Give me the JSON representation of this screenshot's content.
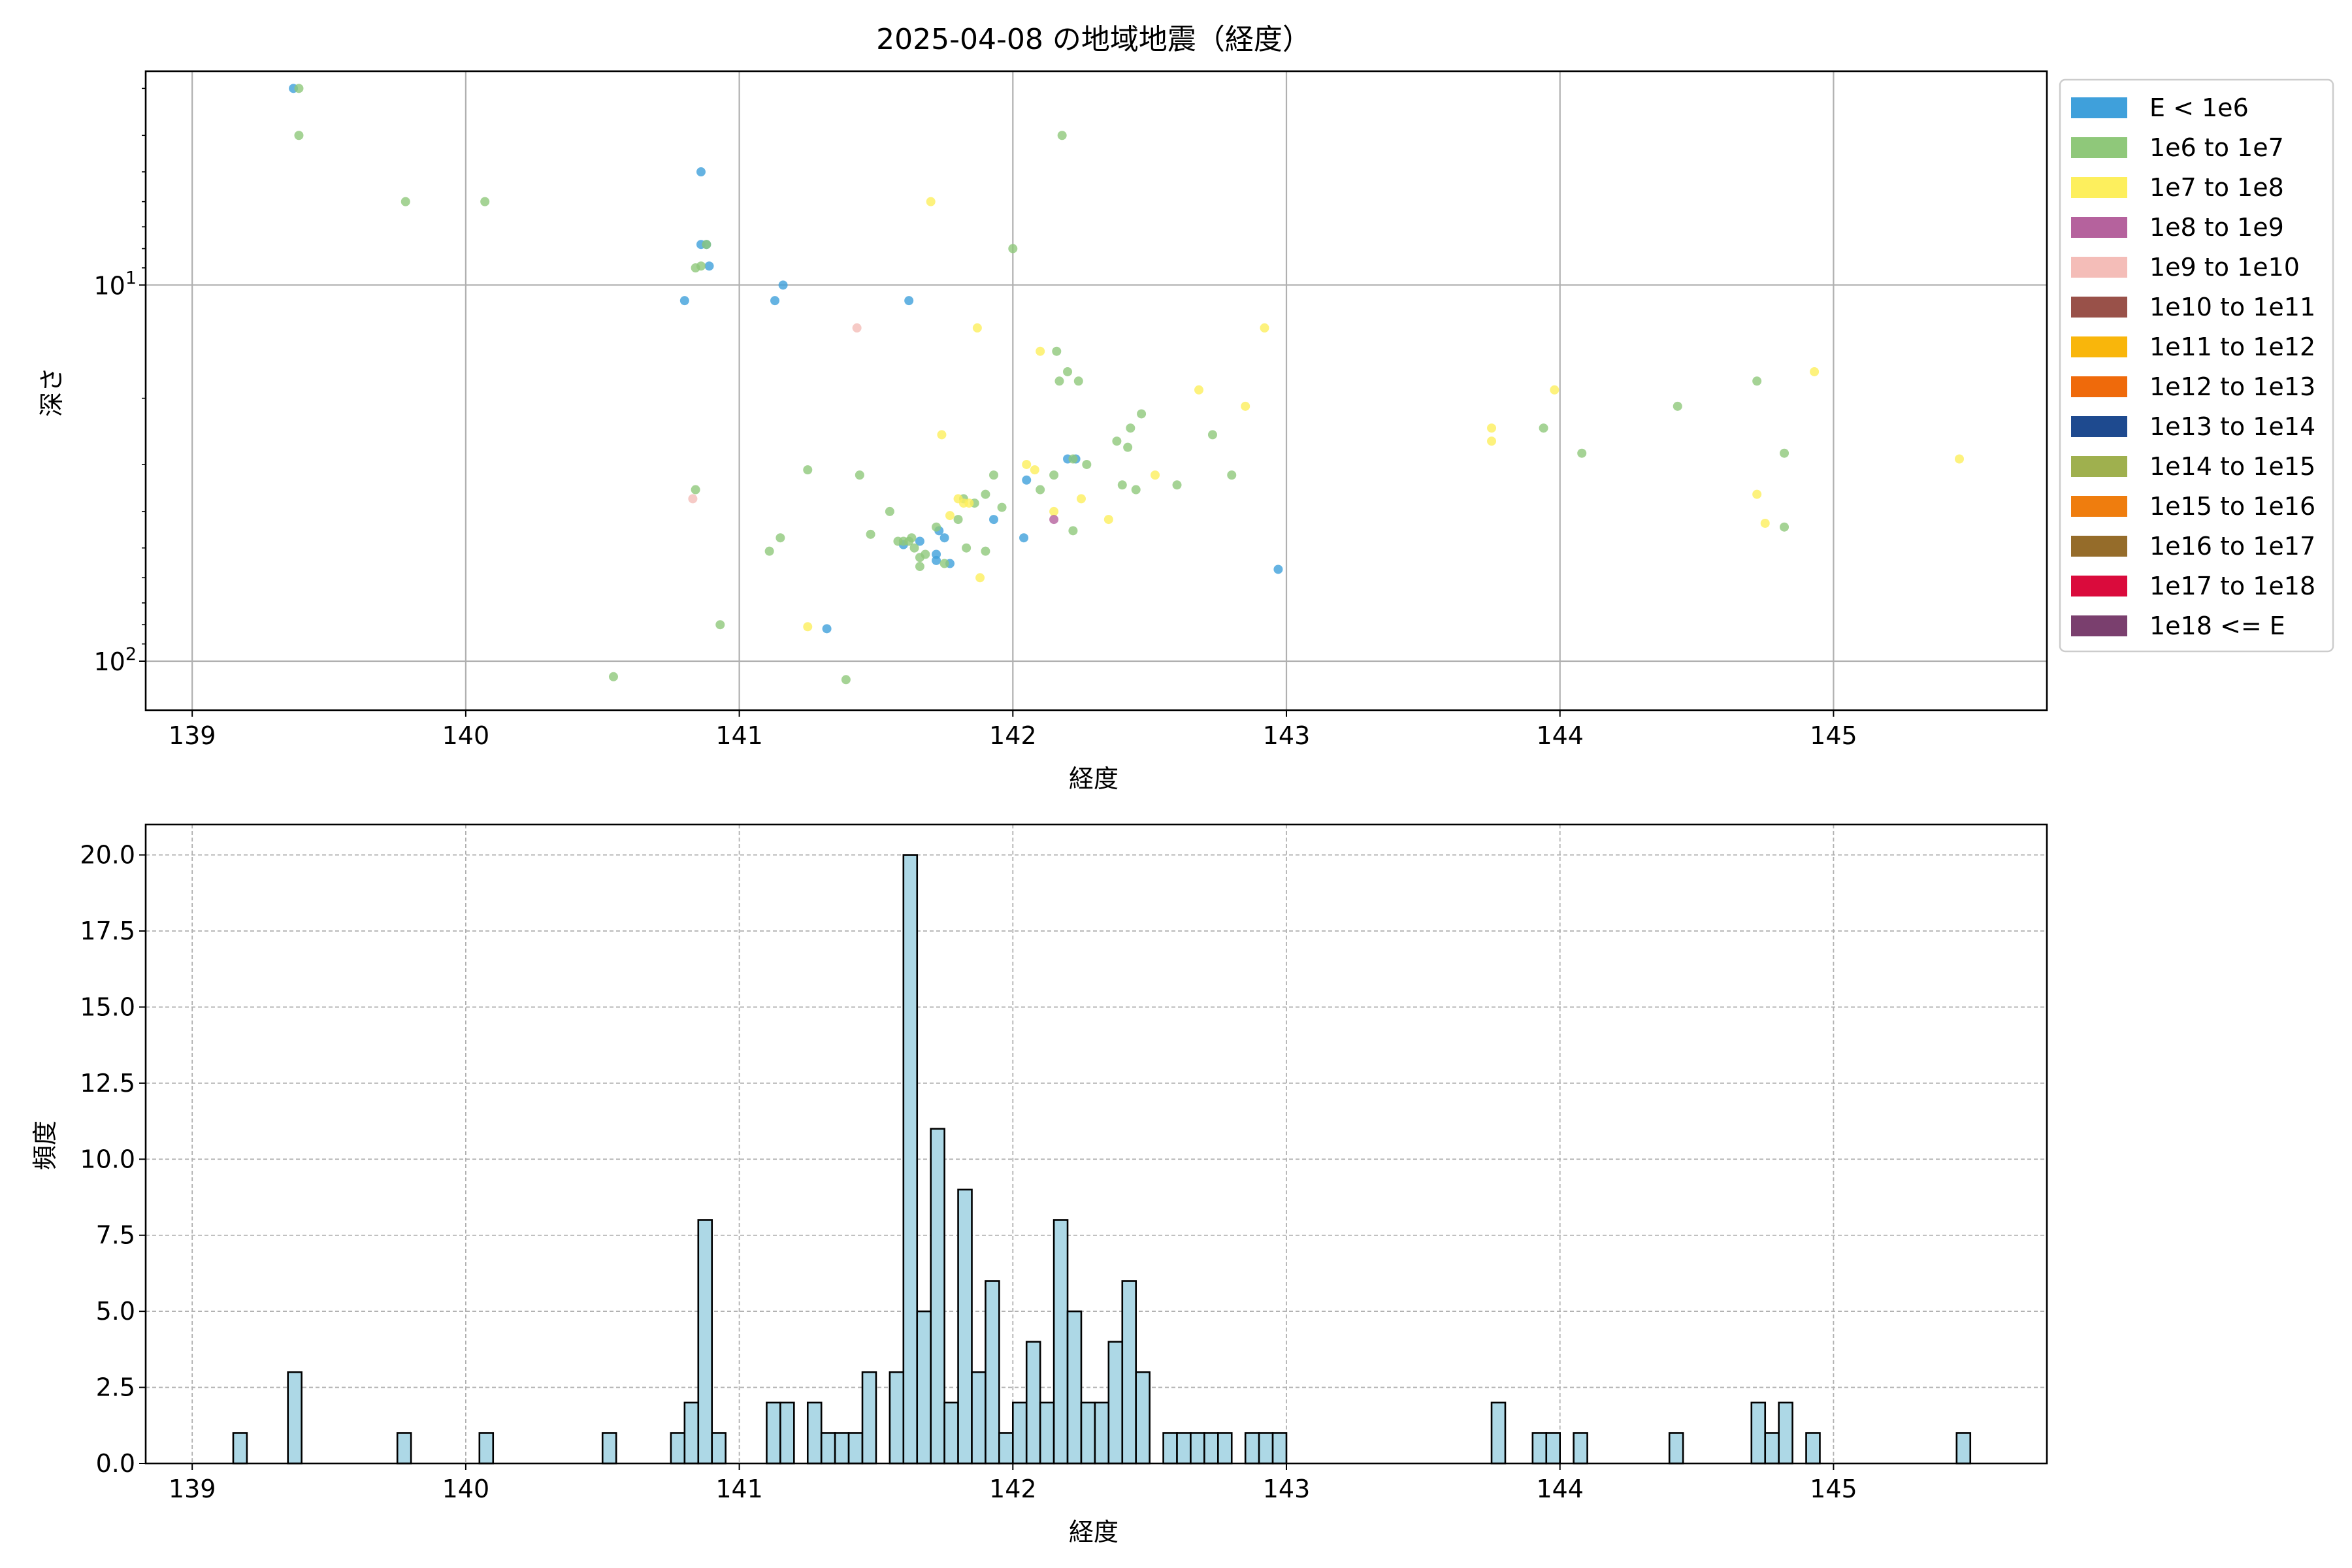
{
  "chart_data": [
    {
      "type": "scatter",
      "title": "2025-04-08 の地域地震（経度）",
      "xlabel": "経度",
      "ylabel": "深さ",
      "xlim": [
        138.83,
        145.78
      ],
      "ylim": [
        135,
        2.7
      ],
      "yscale": "log",
      "y_inverted": true,
      "grid": true,
      "xticks": [
        "139",
        "140",
        "141",
        "142",
        "143",
        "144",
        "145"
      ],
      "yticks": [
        {
          "value": 10,
          "base": "10",
          "exp": "1"
        },
        {
          "value": 100,
          "base": "10",
          "exp": "2"
        }
      ],
      "legend_position": "outside-right",
      "legend": [
        {
          "label": "E < 1e6",
          "color": "#3fa0db"
        },
        {
          "label": "1e6 to 1e7",
          "color": "#8fc87a"
        },
        {
          "label": "1e7 to 1e8",
          "color": "#fdef5d"
        },
        {
          "label": "1e8 to 1e9",
          "color": "#b5629d"
        },
        {
          "label": "1e9 to 1e10",
          "color": "#f4bdb8"
        },
        {
          "label": "1e10 to 1e11",
          "color": "#995149"
        },
        {
          "label": "1e11 to 1e12",
          "color": "#f9b60b"
        },
        {
          "label": "1e12 to 1e13",
          "color": "#ef6a0b"
        },
        {
          "label": "1e13 to 1e14",
          "color": "#1e4a8f"
        },
        {
          "label": "1e14 to 1e15",
          "color": "#9fb04e"
        },
        {
          "label": "1e15 to 1e16",
          "color": "#ef7d0e"
        },
        {
          "label": "1e16 to 1e17",
          "color": "#956c2a"
        },
        {
          "label": "1e17 to 1e18",
          "color": "#da0b3c"
        },
        {
          "label": "1e18 <= E",
          "color": "#7a3f6e"
        }
      ],
      "series": [
        {
          "legend_index": 0,
          "points": [
            [
              139.37,
              3.0
            ],
            [
              140.8,
              11.0
            ],
            [
              140.86,
              5.0
            ],
            [
              140.86,
              7.8
            ],
            [
              140.88,
              7.8
            ],
            [
              140.89,
              8.9
            ],
            [
              141.13,
              11.0
            ],
            [
              141.16,
              10.0
            ],
            [
              141.32,
              82
            ],
            [
              141.62,
              11.0
            ],
            [
              141.6,
              49
            ],
            [
              141.66,
              48
            ],
            [
              141.72,
              52
            ],
            [
              141.72,
              54
            ],
            [
              141.73,
              45
            ],
            [
              141.75,
              47
            ],
            [
              141.77,
              55
            ],
            [
              141.93,
              42
            ],
            [
              142.04,
              47
            ],
            [
              142.05,
              33
            ],
            [
              142.2,
              29
            ],
            [
              142.23,
              29
            ],
            [
              142.97,
              57
            ]
          ]
        },
        {
          "legend_index": 1,
          "points": [
            [
              139.39,
              3.0
            ],
            [
              139.39,
              4.0
            ],
            [
              139.78,
              6.0
            ],
            [
              140.07,
              6.0
            ],
            [
              140.84,
              9.0
            ],
            [
              140.86,
              8.9
            ],
            [
              140.88,
              7.8
            ],
            [
              140.84,
              35
            ],
            [
              140.54,
              110
            ],
            [
              140.93,
              80
            ],
            [
              141.11,
              51
            ],
            [
              141.15,
              47
            ],
            [
              141.25,
              31
            ],
            [
              141.44,
              32
            ],
            [
              141.48,
              46
            ],
            [
              141.55,
              40
            ],
            [
              141.58,
              48
            ],
            [
              141.6,
              48
            ],
            [
              141.62,
              48
            ],
            [
              141.63,
              47
            ],
            [
              141.64,
              50
            ],
            [
              141.66,
              53
            ],
            [
              141.66,
              56
            ],
            [
              141.68,
              52
            ],
            [
              141.72,
              44
            ],
            [
              141.75,
              55
            ],
            [
              141.8,
              42
            ],
            [
              141.82,
              37
            ],
            [
              141.83,
              50
            ],
            [
              141.86,
              38
            ],
            [
              141.9,
              36
            ],
            [
              141.9,
              51
            ],
            [
              141.93,
              32
            ],
            [
              141.96,
              39
            ],
            [
              142.0,
              8.0
            ],
            [
              142.1,
              35
            ],
            [
              142.15,
              32
            ],
            [
              142.16,
              15
            ],
            [
              142.18,
              4.0
            ],
            [
              142.17,
              18
            ],
            [
              142.2,
              17
            ],
            [
              142.22,
              29
            ],
            [
              142.22,
              45
            ],
            [
              142.24,
              18
            ],
            [
              142.27,
              30
            ],
            [
              142.38,
              26
            ],
            [
              142.4,
              34
            ],
            [
              142.42,
              27
            ],
            [
              142.43,
              24
            ],
            [
              142.45,
              35
            ],
            [
              142.47,
              22
            ],
            [
              142.6,
              34
            ],
            [
              142.73,
              25
            ],
            [
              142.8,
              32
            ],
            [
              141.39,
              112
            ],
            [
              143.94,
              24
            ],
            [
              144.08,
              28
            ],
            [
              144.43,
              21
            ],
            [
              144.72,
              18
            ],
            [
              144.82,
              28
            ],
            [
              144.82,
              44
            ]
          ]
        },
        {
          "legend_index": 2,
          "points": [
            [
              141.7,
              6.0
            ],
            [
              141.25,
              81
            ],
            [
              141.74,
              25
            ],
            [
              141.77,
              41
            ],
            [
              141.8,
              37
            ],
            [
              141.82,
              38
            ],
            [
              141.84,
              38
            ],
            [
              141.88,
              60
            ],
            [
              141.87,
              13
            ],
            [
              142.05,
              30
            ],
            [
              142.08,
              31
            ],
            [
              142.1,
              15
            ],
            [
              142.15,
              40
            ],
            [
              142.25,
              37
            ],
            [
              142.35,
              42
            ],
            [
              142.52,
              32
            ],
            [
              142.68,
              19
            ],
            [
              142.85,
              21
            ],
            [
              142.92,
              13
            ],
            [
              143.75,
              24
            ],
            [
              143.75,
              26
            ],
            [
              143.98,
              19
            ],
            [
              144.72,
              36
            ],
            [
              144.75,
              43
            ],
            [
              144.93,
              17
            ],
            [
              145.46,
              29
            ]
          ]
        },
        {
          "legend_index": 3,
          "points": [
            [
              142.15,
              42
            ]
          ]
        },
        {
          "legend_index": 4,
          "points": [
            [
              141.43,
              13
            ],
            [
              140.83,
              37
            ]
          ]
        }
      ]
    },
    {
      "type": "bar",
      "xlabel": "経度",
      "ylabel": "頻度",
      "xlim": [
        138.83,
        145.78
      ],
      "ylim": [
        0,
        21
      ],
      "grid": true,
      "bin_width": 0.05,
      "bar_color": "#add8e6",
      "edge_color": "#000000",
      "xticks": [
        "139",
        "140",
        "141",
        "142",
        "143",
        "144",
        "145"
      ],
      "yticks": [
        "0.0",
        "2.5",
        "5.0",
        "7.5",
        "10.0",
        "12.5",
        "15.0",
        "17.5",
        "20.0"
      ],
      "ytick_values": [
        0,
        2.5,
        5,
        7.5,
        10,
        12.5,
        15,
        17.5,
        20
      ],
      "bin_starts": [
        139.15,
        139.35,
        139.75,
        140.05,
        140.5,
        140.75,
        140.8,
        140.85,
        140.9,
        141.1,
        141.15,
        141.25,
        141.3,
        141.35,
        141.4,
        141.45,
        141.55,
        141.6,
        141.65,
        141.7,
        141.75,
        141.8,
        141.85,
        141.9,
        141.95,
        142.0,
        142.05,
        142.1,
        142.15,
        142.2,
        142.25,
        142.3,
        142.35,
        142.4,
        142.45,
        142.55,
        142.6,
        142.65,
        142.7,
        142.75,
        142.85,
        142.9,
        142.95,
        143.75,
        143.9,
        143.95,
        144.05,
        144.4,
        144.7,
        144.75,
        144.8,
        144.9,
        145.45
      ],
      "values": [
        1,
        3,
        1,
        1,
        1,
        1,
        2,
        8,
        1,
        2,
        2,
        2,
        1,
        1,
        1,
        3,
        3,
        20,
        5,
        11,
        2,
        9,
        3,
        6,
        1,
        2,
        4,
        2,
        8,
        5,
        2,
        2,
        4,
        6,
        3,
        1,
        1,
        1,
        1,
        1,
        1,
        1,
        1,
        2,
        1,
        1,
        1,
        1,
        2,
        1,
        2,
        1,
        1
      ]
    }
  ]
}
